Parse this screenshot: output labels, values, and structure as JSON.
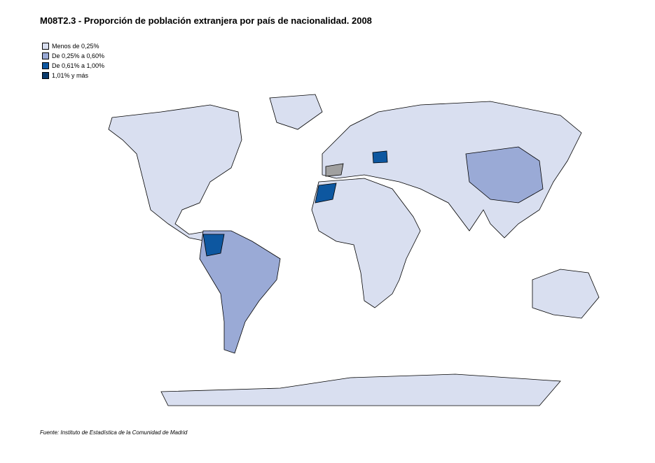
{
  "title": "M08T2.3 - Proporción de población extranjera por país de nacionalidad. 2008",
  "legend": {
    "items": [
      {
        "label": "Menos de 0,25%",
        "color": "#d9dff0"
      },
      {
        "label": "De 0,25% a 0,60%",
        "color": "#9aaad6"
      },
      {
        "label": "De 0,61% a 1,00%",
        "color": "#0d57a0"
      },
      {
        "label": "1,01% y más",
        "color": "#0a3a6b"
      }
    ]
  },
  "source": "Fuente: Instituto de Estadística de la Comunidad de Madrid"
}
